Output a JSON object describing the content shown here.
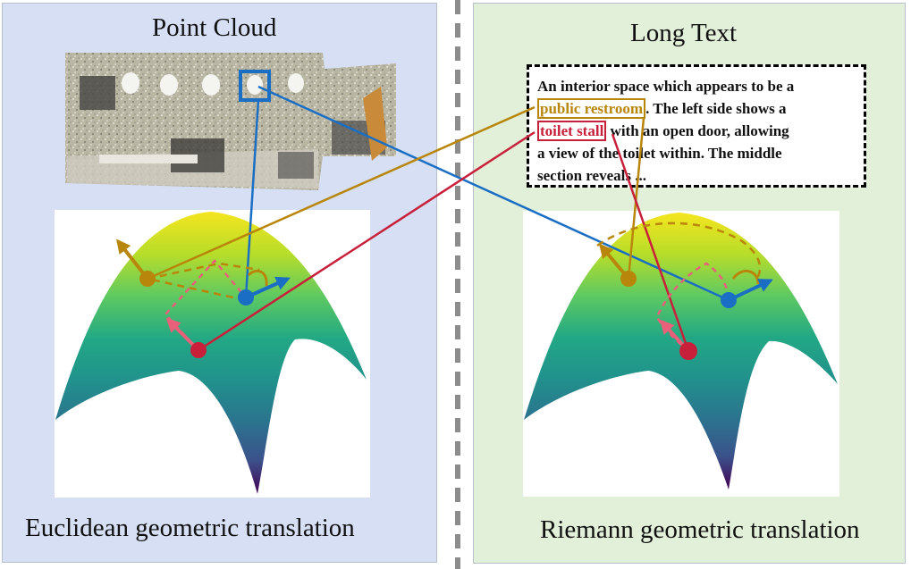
{
  "left_panel": {
    "title": "Point Cloud",
    "caption": "Euclidean geometric translation"
  },
  "right_panel": {
    "title": "Long Text",
    "caption": "Riemann geometric translation",
    "text_box": {
      "line1": "An interior space which appears to be a",
      "highlight_gold": "public restroom",
      "line2_rest": ". The left side shows a",
      "highlight_red": "toilet stall",
      "line3_rest": " with an open door, allowing",
      "line4": "a view of the toilet within. The middle",
      "line5": "section reveals ..."
    }
  },
  "colors": {
    "left_bg": "#d6dff4",
    "right_bg": "#e2efd9",
    "blue": "#1a6fc4",
    "gold": "#b8860b",
    "red": "#c8203a",
    "pink": "#e8607a"
  }
}
